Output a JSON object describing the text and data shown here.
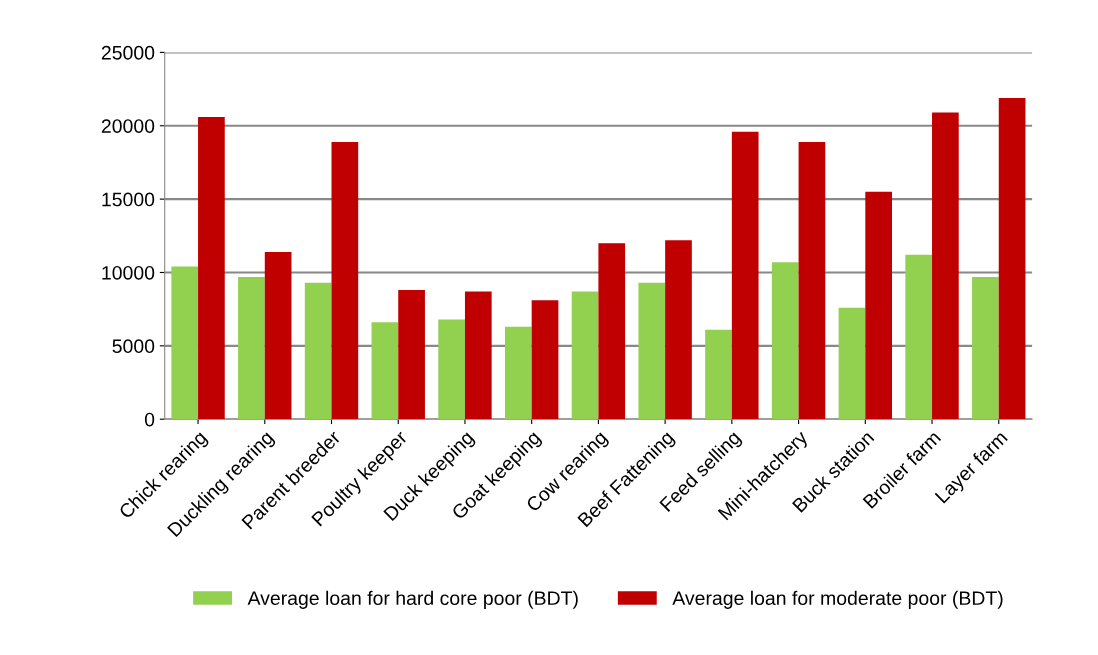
{
  "chart_data": {
    "type": "bar",
    "categories": [
      "Chick rearing",
      "Duckling rearing",
      "Parent breeder",
      "Poultry keeper",
      "Duck keeping",
      "Goat keeping",
      "Cow rearing",
      "Beef Fattening",
      "Feed selling",
      "Mini-hatchery",
      "Buck station",
      "Broiler farm",
      "Layer farm"
    ],
    "series": [
      {
        "name": "Average loan for hard core poor (BDT)",
        "color": "#92d050",
        "values": [
          10400,
          9700,
          9300,
          6600,
          6800,
          6300,
          8700,
          9300,
          6100,
          10700,
          7600,
          11200,
          9700
        ]
      },
      {
        "name": "Average loan for moderate poor (BDT)",
        "color": "#c00000",
        "values": [
          20600,
          11400,
          18900,
          8800,
          8700,
          8100,
          12000,
          12200,
          19600,
          18900,
          15500,
          20900,
          21900
        ]
      }
    ],
    "ylim": [
      0,
      25000
    ],
    "yticks": [
      0,
      5000,
      10000,
      15000,
      20000,
      25000
    ],
    "grid": "y",
    "legend": "bottom"
  }
}
